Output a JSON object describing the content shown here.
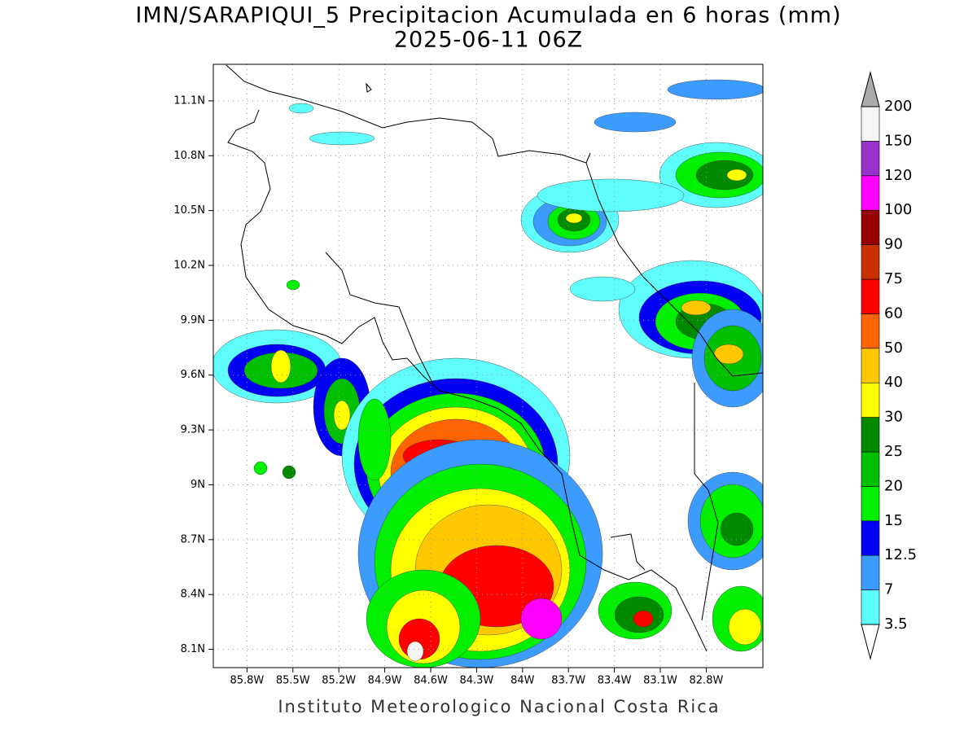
{
  "header": {
    "title": "IMN/SARAPIQUI_5 Precipitacion Acumulada en 6 horas (mm)",
    "subtitle": "2025-06-11 06Z"
  },
  "map": {
    "lon_range": [
      -86.02,
      -82.43
    ],
    "lat_range": [
      8.0,
      11.3
    ],
    "lon_ticks": [
      {
        "value": -85.8,
        "label": "85.8W"
      },
      {
        "value": -85.5,
        "label": "85.5W"
      },
      {
        "value": -85.2,
        "label": "85.2W"
      },
      {
        "value": -84.9,
        "label": "84.9W"
      },
      {
        "value": -84.6,
        "label": "84.6W"
      },
      {
        "value": -84.3,
        "label": "84.3W"
      },
      {
        "value": -84.0,
        "label": "84W"
      },
      {
        "value": -83.7,
        "label": "83.7W"
      },
      {
        "value": -83.4,
        "label": "83.4W"
      },
      {
        "value": -83.1,
        "label": "83.1W"
      },
      {
        "value": -82.8,
        "label": "82.8W"
      }
    ],
    "lat_ticks": [
      {
        "value": 8.1,
        "label": "8.1N"
      },
      {
        "value": 8.4,
        "label": "8.4N"
      },
      {
        "value": 8.7,
        "label": "8.7N"
      },
      {
        "value": 9.0,
        "label": "9N"
      },
      {
        "value": 9.3,
        "label": "9.3N"
      },
      {
        "value": 9.6,
        "label": "9.6N"
      },
      {
        "value": 9.9,
        "label": "9.9N"
      },
      {
        "value": 10.2,
        "label": "10.2N"
      },
      {
        "value": 10.5,
        "label": "10.5N"
      },
      {
        "value": 10.8,
        "label": "10.8N"
      },
      {
        "value": 11.1,
        "label": "11.1N"
      }
    ],
    "grid": true
  },
  "colorbar": {
    "levels": [
      3.5,
      7,
      12.5,
      15,
      20,
      25,
      30,
      40,
      50,
      60,
      75,
      90,
      100,
      120,
      150,
      200
    ],
    "colors": [
      "#5ffcfc",
      "#3c9bff",
      "#0000f5",
      "#00f000",
      "#00c000",
      "#008a00",
      "#ffff00",
      "#ffc800",
      "#ff6400",
      "#ff0000",
      "#c83200",
      "#960000",
      "#ff00ff",
      "#9932cc",
      "#f5f5f5"
    ],
    "under_color": "#ffffff",
    "over_color": "#aaaaaa"
  },
  "footer": "Instituto Meteorologico Nacional Costa Rica"
}
